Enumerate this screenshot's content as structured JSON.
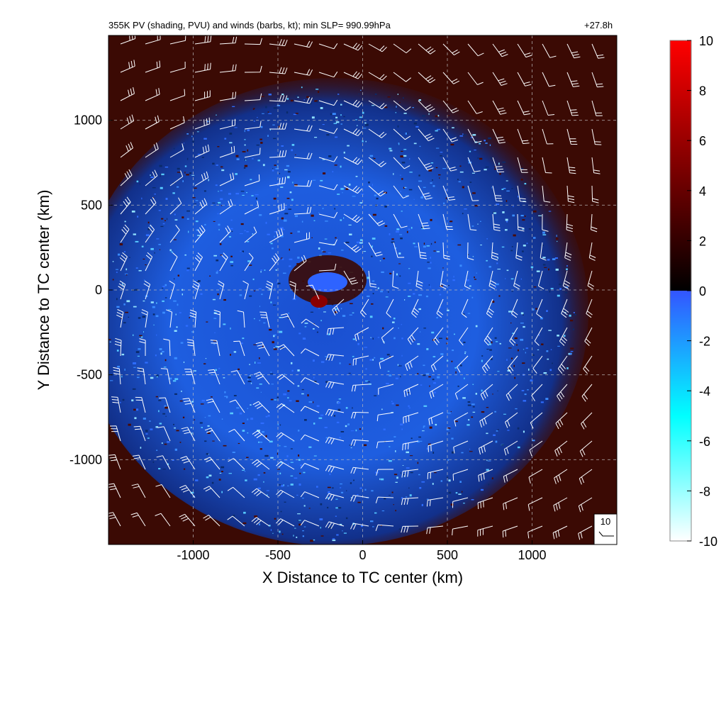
{
  "chart_data": {
    "type": "heatmap",
    "title": "355K PV (shading, PVU) and winds (barbs, kt); min SLP= 990.99hPa",
    "valid_time": "+27.8h",
    "xlabel": "X Distance to TC center (km)",
    "ylabel": "Y Distance to TC center (km)",
    "xlim": [
      -1500,
      1500
    ],
    "ylim": [
      -1500,
      1500
    ],
    "x_ticks": [
      -1000,
      -500,
      0,
      500,
      1000
    ],
    "y_ticks": [
      -1000,
      -500,
      0,
      500,
      1000
    ],
    "x_tick_labels": [
      "-1000",
      "-500",
      "0",
      "500",
      "1000"
    ],
    "y_tick_labels": [
      "-1000",
      "-500",
      "0",
      "500",
      "1000"
    ],
    "grid": true,
    "colorbar": {
      "min": -10,
      "max": 10,
      "ticks": [
        "10",
        "8",
        "6",
        "4",
        "2",
        "0",
        "-2",
        "-4",
        "-6",
        "-8",
        "-10"
      ],
      "colors": {
        "high": "#ff0000",
        "mid_high": "#3a0000",
        "zero_high": "#000000",
        "zero_low": "#3355ff",
        "mid_low": "#00ffff",
        "low": "#ffffff"
      }
    },
    "reference_barb_label": "10",
    "background_color": "#3b0a04"
  }
}
